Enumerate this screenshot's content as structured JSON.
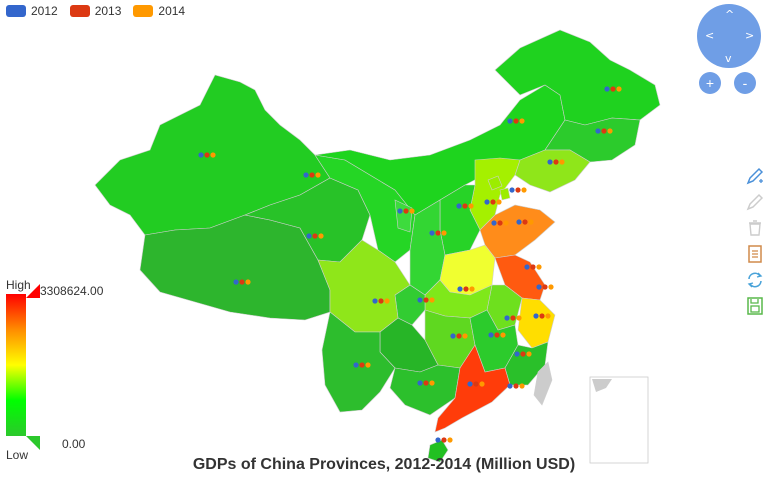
{
  "legend": [
    {
      "label": "2012",
      "color": "#3366cc"
    },
    {
      "label": "2013",
      "color": "#dc3912"
    },
    {
      "label": "2014",
      "color": "#ff9900"
    }
  ],
  "roam_controls": {
    "up": "^",
    "down": "v",
    "left": "<",
    "right": ">"
  },
  "zoom": {
    "in": "+",
    "out": "-"
  },
  "toolbox": [
    "mark-icon",
    "mark-undo-icon",
    "mark-clear-icon",
    "data-view-icon",
    "restore-icon",
    "save-image-icon"
  ],
  "visual_map": {
    "high_label": "High",
    "low_label": "Low",
    "max": "3308624.00",
    "min": "0.00"
  },
  "title": "GDPs of China Provinces, 2012-2014 (Million USD)",
  "colors": {
    "low": "#2cc82c",
    "mid": "#ffff00",
    "high": "#ff0000",
    "roam": "#6f9ee6"
  }
}
